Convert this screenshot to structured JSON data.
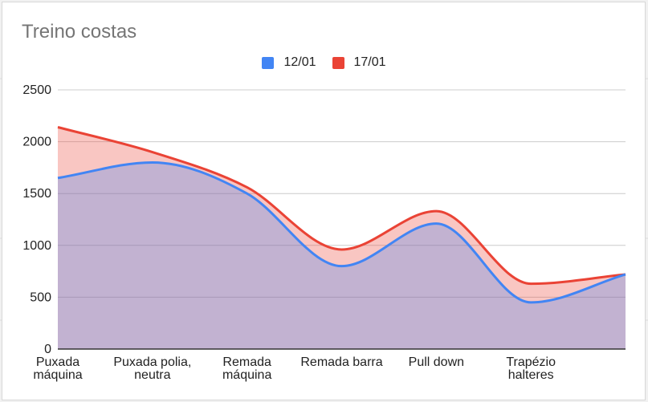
{
  "chart_data": {
    "type": "area",
    "title": "Treino costas",
    "categories": [
      "Puxada\nmáquina",
      "Puxada polia,\nneutra",
      "Remada\nmáquina",
      "Remada barra",
      "Pull down",
      "Trapézio\nhalteres",
      ""
    ],
    "series": [
      {
        "name": "12/01",
        "color": "#4285f4",
        "values": [
          1650,
          1800,
          1500,
          800,
          1210,
          450,
          720
        ]
      },
      {
        "name": "17/01",
        "color": "#ea4335",
        "values": [
          2140,
          1900,
          1560,
          960,
          1330,
          630,
          720
        ]
      }
    ],
    "ylim": [
      0,
      2500
    ],
    "yticks": [
      0,
      500,
      1000,
      1500,
      2000,
      2500
    ],
    "grid": true,
    "legend_position": "top"
  }
}
